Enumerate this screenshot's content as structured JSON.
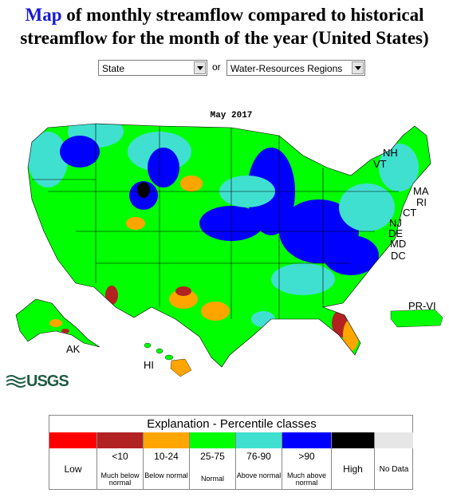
{
  "header": {
    "title_link": "Map",
    "title_rest": " of monthly streamflow compared to historical",
    "title_line2": "streamflow for the month of the year (United States)"
  },
  "selectors": {
    "state": {
      "selected": "State"
    },
    "or_label": "or",
    "region": {
      "selected": "Water-Resources Regions"
    }
  },
  "map": {
    "date_label": "May 2017",
    "state_labels": [
      "NH",
      "VT",
      "MA",
      "RI",
      "CT",
      "NJ",
      "DE",
      "MD",
      "DC",
      "PR-VI",
      "AK",
      "HI"
    ]
  },
  "logo": {
    "text": "USGS"
  },
  "legend": {
    "title": "Explanation - Percentile classes",
    "classes": [
      {
        "color": "#ff0000",
        "label": "Low",
        "sublabel": ""
      },
      {
        "color": "#b22222",
        "label": "<10",
        "sublabel": "Much below normal"
      },
      {
        "color": "#ffa500",
        "label": "10-24",
        "sublabel": "Below normal"
      },
      {
        "color": "#00ff00",
        "label": "25-75",
        "sublabel": "Normal"
      },
      {
        "color": "#40e0d0",
        "label": "76-90",
        "sublabel": "Above normal"
      },
      {
        "color": "#0000ff",
        "label": ">90",
        "sublabel": "Much above normal"
      },
      {
        "color": "#000000",
        "label": "High",
        "sublabel": ""
      },
      {
        "color": "#e6e6e6",
        "label": "No Data",
        "sublabel": ""
      }
    ]
  }
}
